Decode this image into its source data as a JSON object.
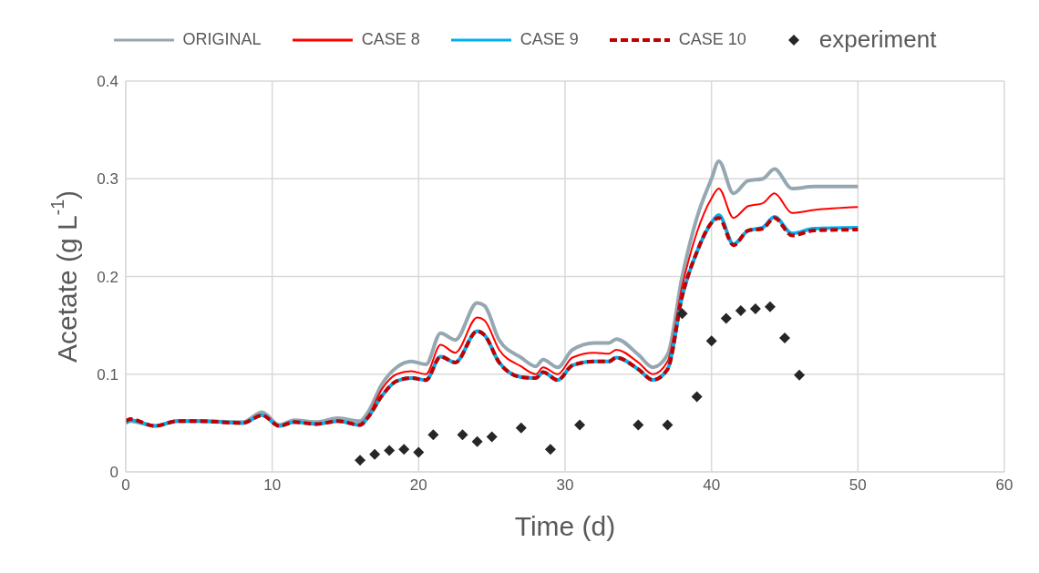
{
  "chart_data": {
    "type": "line",
    "xlabel": "Time (d)",
    "ylabel": "Acetate (g L$^{-1}$)",
    "xlim": [
      0,
      60
    ],
    "xticks": [
      0,
      10,
      20,
      30,
      40,
      50,
      60
    ],
    "ylim": [
      0,
      0.4
    ],
    "yticks": [
      0,
      0.1,
      0.2,
      0.3,
      0.4
    ],
    "grid": true,
    "legend": "top",
    "series": [
      {
        "name": "ORIGINAL",
        "color": "#95a8b1",
        "marker": "none",
        "line_style": "solid",
        "x": [
          0,
          0.3,
          2,
          3.5,
          5,
          8,
          9.3,
          10.5,
          11.5,
          13,
          14.5,
          16,
          16.5,
          17.5,
          18.5,
          19.5,
          20.5,
          21.5,
          22.5,
          24,
          24.5,
          25.5,
          27,
          28,
          28.5,
          29.5,
          30.5,
          32,
          33,
          33.5,
          35,
          36,
          37,
          38,
          39,
          40,
          40.5,
          41.5,
          42.5,
          43.5,
          44.3,
          45.5,
          47,
          50
        ],
        "values": [
          0.05,
          0.052,
          0.047,
          0.052,
          0.052,
          0.051,
          0.061,
          0.048,
          0.053,
          0.051,
          0.055,
          0.052,
          0.06,
          0.09,
          0.107,
          0.113,
          0.11,
          0.142,
          0.135,
          0.173,
          0.17,
          0.135,
          0.117,
          0.108,
          0.115,
          0.107,
          0.125,
          0.132,
          0.132,
          0.136,
          0.12,
          0.107,
          0.12,
          0.2,
          0.26,
          0.3,
          0.318,
          0.285,
          0.298,
          0.3,
          0.31,
          0.29,
          0.292,
          0.292
        ]
      },
      {
        "name": "CASE 8",
        "color": "#ff0000",
        "marker": "none",
        "line_style": "solid",
        "x": [
          16,
          16.5,
          17.5,
          18.5,
          19.5,
          20.5,
          21.5,
          22.5,
          24,
          24.5,
          25.5,
          27,
          28,
          28.5,
          29.5,
          30.5,
          32,
          33,
          33.5,
          35,
          36,
          37,
          38,
          39,
          40,
          40.5,
          41.5,
          42.5,
          43.5,
          44.3,
          45.5,
          47,
          50
        ],
        "values": [
          0.049,
          0.056,
          0.085,
          0.1,
          0.103,
          0.1,
          0.13,
          0.122,
          0.158,
          0.155,
          0.125,
          0.108,
          0.1,
          0.107,
          0.1,
          0.117,
          0.122,
          0.121,
          0.125,
          0.112,
          0.1,
          0.113,
          0.19,
          0.245,
          0.28,
          0.29,
          0.26,
          0.272,
          0.275,
          0.285,
          0.265,
          0.268,
          0.271
        ]
      },
      {
        "name": "CASE 9",
        "color": "#00b0f0",
        "marker": "none",
        "line_style": "solid",
        "x": [
          0,
          0.3,
          2,
          3.5,
          5,
          8,
          9.3,
          10.5,
          11.5,
          13,
          14.5,
          16,
          16.5,
          17.5,
          18.5,
          19.5,
          20.5,
          21.5,
          22.5,
          24,
          24.5,
          25.5,
          27,
          28,
          28.5,
          29.5,
          30.5,
          32,
          33,
          33.5,
          35,
          36,
          37,
          38,
          39,
          40,
          40.5,
          41.5,
          42.5,
          43.5,
          44.3,
          45.5,
          47,
          50
        ],
        "values": [
          0.05,
          0.053,
          0.047,
          0.052,
          0.052,
          0.05,
          0.058,
          0.047,
          0.051,
          0.049,
          0.052,
          0.048,
          0.055,
          0.078,
          0.093,
          0.096,
          0.094,
          0.118,
          0.112,
          0.144,
          0.14,
          0.112,
          0.097,
          0.096,
          0.102,
          0.094,
          0.109,
          0.113,
          0.113,
          0.117,
          0.105,
          0.094,
          0.105,
          0.18,
          0.225,
          0.255,
          0.263,
          0.233,
          0.247,
          0.25,
          0.261,
          0.244,
          0.249,
          0.25
        ]
      },
      {
        "name": "CASE 10",
        "color": "#c00000",
        "marker": "none",
        "line_style": "dashed",
        "x": [
          0,
          0.3,
          2,
          3.5,
          5,
          8,
          9.3,
          10.5,
          11.5,
          13,
          14.5,
          16,
          16.5,
          17.5,
          18.5,
          19.5,
          20.5,
          21.5,
          22.5,
          24,
          24.5,
          25.5,
          27,
          28,
          28.5,
          29.5,
          30.5,
          32,
          33,
          33.5,
          35,
          36,
          37,
          38,
          39,
          40,
          40.5,
          41.5,
          42.5,
          43.5,
          44.3,
          45.5,
          47,
          50
        ],
        "values": [
          0.052,
          0.054,
          0.047,
          0.052,
          0.052,
          0.05,
          0.058,
          0.047,
          0.051,
          0.049,
          0.052,
          0.048,
          0.055,
          0.078,
          0.093,
          0.096,
          0.094,
          0.118,
          0.112,
          0.144,
          0.14,
          0.112,
          0.097,
          0.096,
          0.102,
          0.094,
          0.109,
          0.113,
          0.113,
          0.117,
          0.105,
          0.094,
          0.105,
          0.18,
          0.225,
          0.255,
          0.26,
          0.232,
          0.247,
          0.249,
          0.26,
          0.242,
          0.247,
          0.248
        ]
      },
      {
        "name": "experiment",
        "color": "#262626",
        "type": "scatter",
        "marker": "diamond",
        "x": [
          16,
          17,
          18,
          19,
          20,
          21,
          23,
          24,
          25,
          27,
          29,
          31,
          35,
          37,
          38,
          39,
          40,
          41,
          42,
          43,
          44,
          45,
          46
        ],
        "values": [
          0.012,
          0.018,
          0.022,
          0.023,
          0.02,
          0.038,
          0.038,
          0.031,
          0.036,
          0.045,
          0.023,
          0.048,
          0.048,
          0.048,
          0.162,
          0.077,
          0.134,
          0.157,
          0.165,
          0.167,
          0.169,
          0.137,
          0.099
        ]
      }
    ]
  }
}
